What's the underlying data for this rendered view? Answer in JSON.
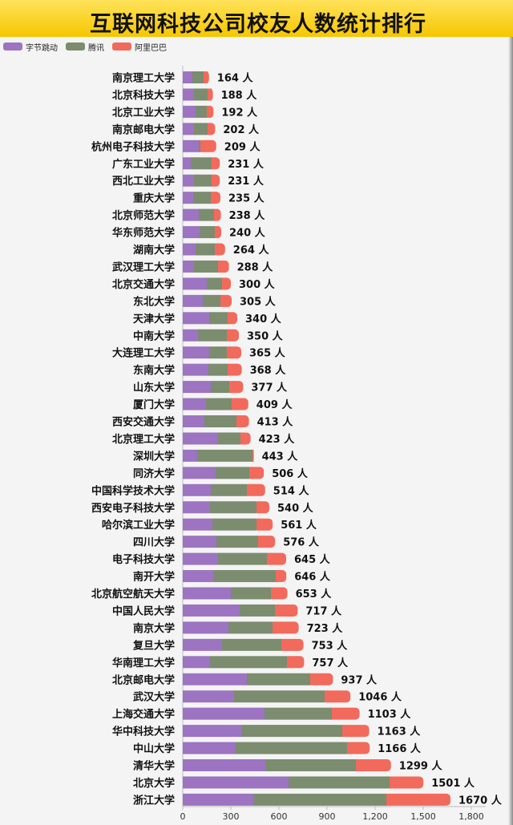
{
  "title": "互联网科技公司校友人数统计排行",
  "legend": [
    {
      "label": "字节跳动",
      "color": "#9c74c1"
    },
    {
      "label": "腾讯",
      "color": "#7b8c6f"
    },
    {
      "label": "阿里巴巴",
      "color": "#f26a5c"
    }
  ],
  "value_suffix": " 人",
  "chart_data": {
    "type": "bar",
    "orientation": "horizontal",
    "stacked": true,
    "title": "互联网科技公司校友人数统计排行",
    "xlim": [
      0,
      1800
    ],
    "xticks": [
      0,
      300,
      600,
      900,
      1200,
      1500,
      1800
    ],
    "xtick_labels": [
      "0",
      "300",
      "600",
      "900",
      "1,200",
      "1,500",
      "1,800"
    ],
    "grid": false,
    "legend_position": "top-left",
    "categories": [
      "南京理工大学",
      "北京科技大学",
      "北京工业大学",
      "南京邮电大学",
      "杭州电子科技大学",
      "广东工业大学",
      "西北工业大学",
      "重庆大学",
      "北京师范大学",
      "华东师范大学",
      "湖南大学",
      "武汉理工大学",
      "北京交通大学",
      "东北大学",
      "天津大学",
      "中南大学",
      "大连理工大学",
      "东南大学",
      "山东大学",
      "厦门大学",
      "西安交通大学",
      "北京理工大学",
      "深圳大学",
      "同济大学",
      "中国科学技术大学",
      "西安电子科技大学",
      "哈尔滨工业大学",
      "四川大学",
      "电子科技大学",
      "南开大学",
      "北京航空航天大学",
      "中国人民大学",
      "南京大学",
      "复旦大学",
      "华南理工大学",
      "北京邮电大学",
      "武汉大学",
      "上海交通大学",
      "华中科技大学",
      "中山大学",
      "清华大学",
      "北京大学",
      "浙江大学"
    ],
    "totals": [
      164,
      188,
      192,
      202,
      209,
      231,
      231,
      235,
      238,
      240,
      264,
      288,
      300,
      305,
      340,
      350,
      365,
      368,
      377,
      409,
      413,
      423,
      443,
      506,
      514,
      540,
      561,
      576,
      645,
      646,
      653,
      717,
      723,
      753,
      757,
      937,
      1046,
      1103,
      1163,
      1166,
      1299,
      1501,
      1670
    ],
    "series": [
      {
        "name": "字节跳动",
        "values": [
          60,
          70,
          80,
          70,
          100,
          50,
          70,
          65,
          100,
          105,
          80,
          70,
          150,
          125,
          165,
          95,
          165,
          160,
          175,
          145,
          135,
          220,
          90,
          205,
          175,
          170,
          185,
          210,
          220,
          195,
          300,
          355,
          285,
          245,
          170,
          400,
          320,
          510,
          370,
          330,
          515,
          660,
          440
        ]
      },
      {
        "name": "腾讯",
        "values": [
          70,
          85,
          70,
          85,
          10,
          130,
          110,
          110,
          95,
          95,
          120,
          150,
          95,
          110,
          115,
          180,
          110,
          120,
          115,
          160,
          200,
          140,
          345,
          210,
          225,
          290,
          275,
          260,
          305,
          385,
          250,
          220,
          275,
          370,
          480,
          395,
          565,
          420,
          625,
          695,
          565,
          630,
          830
        ]
      },
      {
        "name": "阿里巴巴",
        "values": [
          34,
          33,
          42,
          47,
          99,
          51,
          51,
          60,
          43,
          40,
          64,
          68,
          55,
          70,
          60,
          75,
          90,
          88,
          87,
          104,
          78,
          63,
          8,
          91,
          114,
          80,
          101,
          106,
          120,
          66,
          103,
          142,
          163,
          138,
          107,
          142,
          161,
          173,
          168,
          141,
          219,
          211,
          400
        ]
      }
    ]
  }
}
